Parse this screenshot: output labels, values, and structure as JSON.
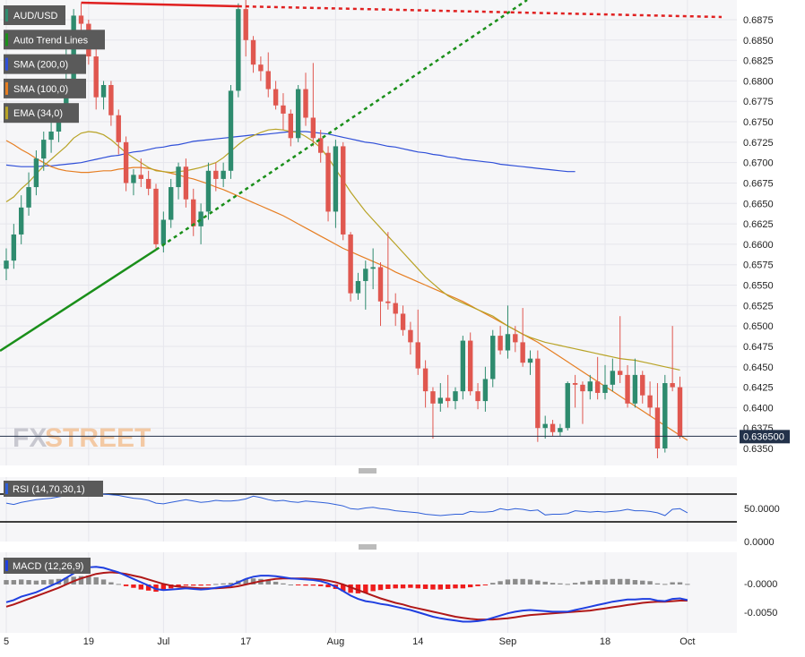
{
  "colors": {
    "pane_bg": "#f6f6f8",
    "grid": "#e6e6ec",
    "axis_text": "#222222",
    "bull": "#2e8b6e",
    "bear": "#e0574f",
    "sma200": "#2f4fd8",
    "sma100": "#e67e22",
    "ema34": "#b8a326",
    "trend_red": "#e02020",
    "trend_green": "#1a8f1a",
    "rsi_line": "#2f5fd8",
    "macd_line": "#1f3fe0",
    "signal_line": "#b01818",
    "hist_pos": "#8c8c8c",
    "hist_neg": "#ee1c1c",
    "price_tag_bg": "#23324a",
    "legend_bg": "#5a5a5a"
  },
  "legend": [
    {
      "label": "AUD/USD",
      "swatch": "#2e8b6e",
      "icon": "pair-swatch"
    },
    {
      "label": "Auto Trend Lines",
      "swatch": "#1a8f1a",
      "icon": "trend-swatch"
    },
    {
      "label": "SMA (200,0)",
      "swatch": "#2f4fd8",
      "icon": "sma200-swatch"
    },
    {
      "label": "SMA (100,0)",
      "swatch": "#e67e22",
      "icon": "sma100-swatch"
    },
    {
      "label": "EMA (34,0)",
      "swatch": "#b8a326",
      "icon": "ema-swatch"
    }
  ],
  "watermark": {
    "part1": "FX",
    "part2": "STREET"
  },
  "current_price_label": "0.636500",
  "rsi": {
    "label": "RSI (14,70,30,1)",
    "ticks": [
      "50.0000",
      "0.0000"
    ]
  },
  "macd": {
    "label": "MACD (12,26,9)",
    "ticks": [
      "-0.0000",
      "-0.0050"
    ]
  },
  "chart_data": {
    "type": "candlestick",
    "symbol": "AUD/USD",
    "x_tick_labels": [
      "5",
      "19",
      "Jul",
      "17",
      "Aug",
      "14",
      "Sep",
      "18",
      "Oct"
    ],
    "y_ticks": [
      "0.6875",
      "0.6850",
      "0.6825",
      "0.6800",
      "0.6775",
      "0.6750",
      "0.6725",
      "0.6700",
      "0.6675",
      "0.6650",
      "0.6625",
      "0.6600",
      "0.6575",
      "0.6550",
      "0.6525",
      "0.6500",
      "0.6475",
      "0.6450",
      "0.6425",
      "0.6400",
      "0.6375",
      "0.6350"
    ],
    "ylim": [
      0.6335,
      0.6895
    ],
    "current_price": 0.6365,
    "candles": [
      [
        0.657,
        0.6595,
        0.6556,
        0.658
      ],
      [
        0.658,
        0.6625,
        0.657,
        0.6612
      ],
      [
        0.6612,
        0.666,
        0.66,
        0.6645
      ],
      [
        0.6645,
        0.6688,
        0.6635,
        0.667
      ],
      [
        0.667,
        0.6715,
        0.666,
        0.6705
      ],
      [
        0.6705,
        0.6738,
        0.669,
        0.6728
      ],
      [
        0.6728,
        0.6752,
        0.6712,
        0.6738
      ],
      [
        0.6738,
        0.677,
        0.6725,
        0.676
      ],
      [
        0.676,
        0.684,
        0.675,
        0.68
      ],
      [
        0.68,
        0.6888,
        0.679,
        0.688
      ],
      [
        0.688,
        0.6895,
        0.6855,
        0.687
      ],
      [
        0.687,
        0.6875,
        0.682,
        0.683
      ],
      [
        0.683,
        0.6845,
        0.6765,
        0.678
      ],
      [
        0.678,
        0.68,
        0.6765,
        0.6795
      ],
      [
        0.6795,
        0.68,
        0.6745,
        0.6758
      ],
      [
        0.6758,
        0.6765,
        0.671,
        0.6725
      ],
      [
        0.6725,
        0.6732,
        0.6665,
        0.6675
      ],
      [
        0.6675,
        0.6692,
        0.666,
        0.6685
      ],
      [
        0.6685,
        0.6705,
        0.667,
        0.668
      ],
      [
        0.668,
        0.669,
        0.666,
        0.6668
      ],
      [
        0.6668,
        0.6674,
        0.6595,
        0.66
      ],
      [
        0.66,
        0.664,
        0.659,
        0.663
      ],
      [
        0.663,
        0.668,
        0.662,
        0.667
      ],
      [
        0.667,
        0.67,
        0.6655,
        0.6695
      ],
      [
        0.6695,
        0.6705,
        0.6645,
        0.6655
      ],
      [
        0.6655,
        0.6668,
        0.661,
        0.6622
      ],
      [
        0.6622,
        0.665,
        0.66,
        0.664
      ],
      [
        0.664,
        0.67,
        0.663,
        0.669
      ],
      [
        0.669,
        0.67,
        0.6665,
        0.668
      ],
      [
        0.668,
        0.67,
        0.667,
        0.669
      ],
      [
        0.669,
        0.6795,
        0.668,
        0.6788
      ],
      [
        0.6788,
        0.6895,
        0.678,
        0.6888
      ],
      [
        0.6888,
        0.69,
        0.683,
        0.685
      ],
      [
        0.685,
        0.6855,
        0.681,
        0.682
      ],
      [
        0.682,
        0.683,
        0.68,
        0.6812
      ],
      [
        0.6812,
        0.6835,
        0.678,
        0.679
      ],
      [
        0.679,
        0.68,
        0.6765,
        0.677
      ],
      [
        0.677,
        0.6785,
        0.674,
        0.676
      ],
      [
        0.676,
        0.6765,
        0.672,
        0.673
      ],
      [
        0.673,
        0.6795,
        0.6725,
        0.679
      ],
      [
        0.679,
        0.681,
        0.6745,
        0.6755
      ],
      [
        0.6755,
        0.6822,
        0.672,
        0.673
      ],
      [
        0.673,
        0.674,
        0.67,
        0.6712
      ],
      [
        0.6712,
        0.672,
        0.6628,
        0.664
      ],
      [
        0.664,
        0.6728,
        0.662,
        0.672
      ],
      [
        0.672,
        0.6725,
        0.6605,
        0.6612
      ],
      [
        0.6612,
        0.6615,
        0.653,
        0.654
      ],
      [
        0.654,
        0.6565,
        0.6532,
        0.6555
      ],
      [
        0.6555,
        0.658,
        0.652,
        0.657
      ],
      [
        0.657,
        0.6595,
        0.6545,
        0.6572
      ],
      [
        0.6572,
        0.6578,
        0.65,
        0.653
      ],
      [
        0.653,
        0.6615,
        0.652,
        0.6528
      ],
      [
        0.6528,
        0.654,
        0.65,
        0.6515
      ],
      [
        0.6515,
        0.6525,
        0.6488,
        0.6495
      ],
      [
        0.6495,
        0.6505,
        0.6465,
        0.648
      ],
      [
        0.648,
        0.652,
        0.644,
        0.6448
      ],
      [
        0.6448,
        0.6458,
        0.64,
        0.642
      ],
      [
        0.642,
        0.6425,
        0.6362,
        0.6405
      ],
      [
        0.6405,
        0.643,
        0.6395,
        0.6412
      ],
      [
        0.6412,
        0.644,
        0.64,
        0.6408
      ],
      [
        0.6408,
        0.6425,
        0.6398,
        0.642
      ],
      [
        0.642,
        0.6488,
        0.641,
        0.6482
      ],
      [
        0.6482,
        0.6492,
        0.6415,
        0.642
      ],
      [
        0.642,
        0.643,
        0.6398,
        0.6408
      ],
      [
        0.6408,
        0.645,
        0.6395,
        0.6435
      ],
      [
        0.6435,
        0.6495,
        0.6425,
        0.6488
      ],
      [
        0.6488,
        0.65,
        0.6465,
        0.647
      ],
      [
        0.647,
        0.6525,
        0.646,
        0.649
      ],
      [
        0.649,
        0.65,
        0.6468,
        0.648
      ],
      [
        0.648,
        0.6522,
        0.645,
        0.6455
      ],
      [
        0.6455,
        0.647,
        0.644,
        0.646
      ],
      [
        0.646,
        0.647,
        0.6358,
        0.6375
      ],
      [
        0.6375,
        0.639,
        0.6362,
        0.638
      ],
      [
        0.638,
        0.6385,
        0.6365,
        0.637
      ],
      [
        0.637,
        0.638,
        0.6365,
        0.6375
      ],
      [
        0.6375,
        0.6432,
        0.6372,
        0.643
      ],
      [
        0.643,
        0.644,
        0.64,
        0.6428
      ],
      [
        0.6428,
        0.6432,
        0.638,
        0.642
      ],
      [
        0.642,
        0.644,
        0.641,
        0.6432
      ],
      [
        0.6432,
        0.6462,
        0.641,
        0.6418
      ],
      [
        0.6418,
        0.6452,
        0.641,
        0.6428
      ],
      [
        0.6428,
        0.646,
        0.642,
        0.6445
      ],
      [
        0.6445,
        0.6512,
        0.643,
        0.644
      ],
      [
        0.644,
        0.6452,
        0.64,
        0.6405
      ],
      [
        0.6405,
        0.646,
        0.64,
        0.644
      ],
      [
        0.644,
        0.6445,
        0.6405,
        0.6415
      ],
      [
        0.6415,
        0.6432,
        0.639,
        0.64
      ],
      [
        0.64,
        0.643,
        0.6338,
        0.635
      ],
      [
        0.635,
        0.644,
        0.6345,
        0.643
      ],
      [
        0.643,
        0.65,
        0.642,
        0.6425
      ],
      [
        0.6425,
        0.6438,
        0.6362,
        0.6365
      ]
    ],
    "sma200": [
      0.6697,
      0.6696,
      0.6695,
      0.6695,
      0.6695,
      0.6696,
      0.6696,
      0.6697,
      0.6698,
      0.6699,
      0.67,
      0.6702,
      0.6704,
      0.6706,
      0.6708,
      0.6709,
      0.6711,
      0.6713,
      0.6714,
      0.6716,
      0.6718,
      0.6719,
      0.6721,
      0.6722,
      0.6724,
      0.6726,
      0.6727,
      0.6728,
      0.6729,
      0.673,
      0.6731,
      0.6732,
      0.6733,
      0.6734,
      0.6734,
      0.6735,
      0.6736,
      0.6737,
      0.6738,
      0.6738,
      0.6738,
      0.6737,
      0.6736,
      0.6735,
      0.6733,
      0.6731,
      0.6729,
      0.6727,
      0.6725,
      0.6724,
      0.6722,
      0.672,
      0.6719,
      0.6717,
      0.6715,
      0.6713,
      0.6712,
      0.671,
      0.6709,
      0.6707,
      0.6706,
      0.6704,
      0.6703,
      0.6702,
      0.6701,
      0.67,
      0.6698,
      0.6697,
      0.6696,
      0.6695,
      0.6694,
      0.6693,
      0.6692,
      0.6691,
      0.669,
      0.6689,
      0.6689
    ],
    "sma200_start": 13,
    "sma100_start": 10,
    "sma100": [
      0.6727,
      0.6722,
      0.6716,
      0.6711,
      0.6705,
      0.67,
      0.6695,
      0.6692,
      0.669,
      0.6689,
      0.6688,
      0.6688,
      0.6689,
      0.669,
      0.669,
      0.6692,
      0.6693,
      0.6694,
      0.6694,
      0.6693,
      0.6691,
      0.6689,
      0.6687,
      0.6685,
      0.6682,
      0.668,
      0.6677,
      0.6674,
      0.667,
      0.6667,
      0.6663,
      0.6659,
      0.6655,
      0.6651,
      0.6647,
      0.6643,
      0.6639,
      0.6635,
      0.663,
      0.6625,
      0.662,
      0.6615,
      0.661,
      0.6605,
      0.66,
      0.6595,
      0.6591,
      0.6587,
      0.6583,
      0.6579,
      0.6575,
      0.6571,
      0.6566,
      0.6562,
      0.6558,
      0.6554,
      0.655,
      0.6546,
      0.6542,
      0.6538,
      0.6534,
      0.653,
      0.6525,
      0.652,
      0.6515,
      0.651,
      0.6505,
      0.65,
      0.6495,
      0.649,
      0.6485,
      0.648,
      0.6474,
      0.6468,
      0.6462,
      0.6456,
      0.645,
      0.6444,
      0.6438,
      0.6432,
      0.6426,
      0.642,
      0.6414,
      0.6408,
      0.6402,
      0.6396,
      0.639,
      0.6384,
      0.6378,
      0.6372,
      0.6366,
      0.636
    ],
    "ema34": [
      0.6652,
      0.6658,
      0.6668,
      0.6676,
      0.6686,
      0.6696,
      0.6704,
      0.6712,
      0.672,
      0.673,
      0.6736,
      0.6738,
      0.6737,
      0.6734,
      0.6728,
      0.672,
      0.6712,
      0.6706,
      0.67,
      0.6694,
      0.669,
      0.6689,
      0.6688,
      0.6689,
      0.669,
      0.6692,
      0.6694,
      0.6697,
      0.67,
      0.6706,
      0.6714,
      0.6722,
      0.6729,
      0.6733,
      0.6737,
      0.674,
      0.6741,
      0.674,
      0.6738,
      0.6737,
      0.6732,
      0.6726,
      0.6718,
      0.6706,
      0.6692,
      0.6678,
      0.6664,
      0.6652,
      0.664,
      0.663,
      0.662,
      0.661,
      0.66,
      0.659,
      0.658,
      0.657,
      0.656,
      0.6552,
      0.6544,
      0.6537,
      0.6532,
      0.6528,
      0.6524,
      0.652,
      0.6516,
      0.6512,
      0.6506,
      0.65,
      0.6495,
      0.649,
      0.6486,
      0.6483,
      0.648,
      0.6478,
      0.6476,
      0.6474,
      0.6472,
      0.647,
      0.6468,
      0.6466,
      0.6464,
      0.6462,
      0.646,
      0.6459,
      0.6458,
      0.6456,
      0.6454,
      0.6452,
      0.645,
      0.6448,
      0.6446
    ],
    "rsi": [
      57,
      55,
      58,
      60,
      62,
      63,
      64,
      66,
      68,
      70,
      72,
      73,
      71,
      70,
      69,
      68,
      66,
      64,
      63,
      61,
      57,
      56,
      58,
      60,
      62,
      60,
      58,
      59,
      61,
      60,
      60,
      61,
      63,
      67,
      65,
      62,
      60,
      61,
      59,
      58,
      60,
      59,
      58,
      57,
      55,
      53,
      49,
      48,
      50,
      51,
      49,
      48,
      46,
      45,
      44,
      43,
      41,
      40,
      39,
      40,
      41,
      41,
      45,
      44,
      44,
      45,
      49,
      47,
      49,
      48,
      46,
      47,
      40,
      41,
      41,
      42,
      46,
      45,
      44,
      45,
      44,
      45,
      46,
      48,
      46,
      46,
      45,
      43,
      39,
      48,
      49,
      43
    ],
    "macd": [
      -0.0032,
      -0.0028,
      -0.0022,
      -0.0018,
      -0.0014,
      -0.0008,
      -0.0002,
      0.0004,
      0.0012,
      0.002,
      0.0026,
      0.0031,
      0.0032,
      0.003,
      0.0026,
      0.0022,
      0.0016,
      0.001,
      0.0004,
      -0.0002,
      -0.0008,
      -0.001,
      -0.0009,
      -0.0008,
      -0.0007,
      -0.0008,
      -0.0009,
      -0.0008,
      -0.0006,
      -0.0004,
      -0.0002,
      0.0004,
      0.001,
      0.0014,
      0.0016,
      0.0016,
      0.0015,
      0.0013,
      0.0011,
      0.001,
      0.0009,
      0.0008,
      0.0006,
      0.0002,
      -0.0004,
      -0.0012,
      -0.002,
      -0.0026,
      -0.003,
      -0.0032,
      -0.0035,
      -0.0037,
      -0.004,
      -0.0043,
      -0.0046,
      -0.005,
      -0.0054,
      -0.0058,
      -0.0061,
      -0.0063,
      -0.0065,
      -0.0067,
      -0.0067,
      -0.0066,
      -0.0064,
      -0.006,
      -0.0056,
      -0.0052,
      -0.0049,
      -0.0047,
      -0.0046,
      -0.0047,
      -0.0048,
      -0.0049,
      -0.0049,
      -0.0049,
      -0.0046,
      -0.0043,
      -0.004,
      -0.0037,
      -0.0034,
      -0.0031,
      -0.0029,
      -0.0027,
      -0.0027,
      -0.0026,
      -0.0026,
      -0.0029,
      -0.003,
      -0.0026,
      -0.0025,
      -0.0028
    ],
    "signal": [
      -0.004,
      -0.0036,
      -0.0031,
      -0.0026,
      -0.0021,
      -0.0016,
      -0.0011,
      -0.0006,
      0.0,
      0.0006,
      0.0011,
      0.0015,
      0.0019,
      0.0021,
      0.0022,
      0.0021,
      0.0019,
      0.0016,
      0.0013,
      0.0009,
      0.0005,
      0.0001,
      -0.0002,
      -0.0004,
      -0.0005,
      -0.0006,
      -0.0007,
      -0.0007,
      -0.0007,
      -0.0006,
      -0.0005,
      -0.0003,
      0.0,
      0.0003,
      0.0006,
      0.0008,
      0.001,
      0.0011,
      0.0011,
      0.0011,
      0.0011,
      0.001,
      0.0009,
      0.0007,
      0.0004,
      0.0,
      -0.0005,
      -0.001,
      -0.0015,
      -0.002,
      -0.0025,
      -0.0029,
      -0.0033,
      -0.0036,
      -0.004,
      -0.0043,
      -0.0046,
      -0.0049,
      -0.0052,
      -0.0055,
      -0.0058,
      -0.006,
      -0.0062,
      -0.0063,
      -0.0063,
      -0.0063,
      -0.0062,
      -0.0061,
      -0.0059,
      -0.0057,
      -0.0055,
      -0.0054,
      -0.0053,
      -0.0052,
      -0.0051,
      -0.005,
      -0.0049,
      -0.0048,
      -0.0047,
      -0.0045,
      -0.0043,
      -0.0041,
      -0.0039,
      -0.0037,
      -0.0035,
      -0.0033,
      -0.0032,
      -0.0031,
      -0.0031,
      -0.003,
      -0.0029,
      -0.0029
    ]
  }
}
